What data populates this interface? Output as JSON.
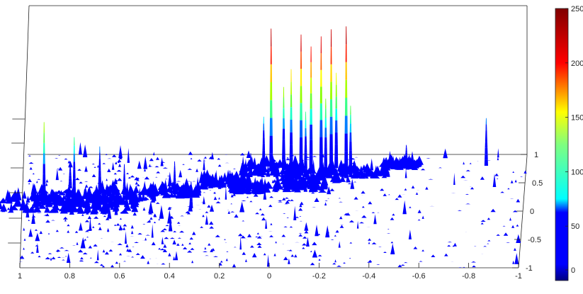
{
  "chart_data": {
    "type": "surface3d",
    "title": "",
    "xlabel": "",
    "ylabel": "",
    "zlabel": "",
    "x_ticks": [
      "1",
      "0.8",
      "0.6",
      "0.4",
      "0.2",
      "0",
      "-0.2",
      "-0.4",
      "-0.6",
      "-0.8",
      "-1"
    ],
    "y_ticks": [
      "-1",
      "-0.5",
      "0",
      "0.5",
      "1"
    ],
    "xlim": [
      1,
      -1
    ],
    "ylim": [
      -1,
      1
    ],
    "zlim": [
      0,
      250
    ],
    "colormap": "jet",
    "colorbar_ticks": [
      "0",
      "50",
      "100",
      "150",
      "200",
      "250"
    ],
    "colorbar_range": [
      0,
      250
    ],
    "colors": {
      "low": "#0000ff",
      "mid": "#00ffff",
      "midhigh": "#ffff00",
      "high": "#ff0000",
      "max": "#800000",
      "axis": "#222222"
    },
    "peaks": [
      {
        "x": 0.02,
        "y": 0.7,
        "z": 240
      },
      {
        "x": -0.1,
        "y": 0.7,
        "z": 230
      },
      {
        "x": -0.18,
        "y": 0.72,
        "z": 225
      },
      {
        "x": -0.22,
        "y": 0.74,
        "z": 235
      },
      {
        "x": -0.28,
        "y": 0.74,
        "z": 240
      },
      {
        "x": -0.14,
        "y": 0.7,
        "z": 210
      },
      {
        "x": -0.06,
        "y": 0.72,
        "z": 170
      },
      {
        "x": -0.03,
        "y": 0.72,
        "z": 140
      },
      {
        "x": -0.24,
        "y": 0.76,
        "z": 160
      },
      {
        "x": 0.05,
        "y": 0.72,
        "z": 90
      },
      {
        "x": -0.3,
        "y": 0.6,
        "z": 120
      },
      {
        "x": -0.12,
        "y": 0.6,
        "z": 110
      },
      {
        "x": -0.2,
        "y": 0.62,
        "z": 130
      },
      {
        "x": 0.92,
        "y": 0.1,
        "z": 140
      },
      {
        "x": 0.8,
        "y": 0.15,
        "z": 110
      },
      {
        "x": 0.7,
        "y": 0.3,
        "z": 80
      },
      {
        "x": 0.6,
        "y": 0.2,
        "z": 60
      },
      {
        "x": 0.4,
        "y": 0.3,
        "z": 55
      },
      {
        "x": 0.33,
        "y": 0.05,
        "z": 45
      },
      {
        "x": -0.84,
        "y": 0.8,
        "z": 80
      },
      {
        "x": -0.52,
        "y": 0.8,
        "z": 35
      },
      {
        "x": 0.82,
        "y": 0.4,
        "z": 45
      },
      {
        "x": 0.1,
        "y": 0.6,
        "z": 40
      },
      {
        "x": 0.18,
        "y": 0.4,
        "z": 30
      }
    ]
  }
}
